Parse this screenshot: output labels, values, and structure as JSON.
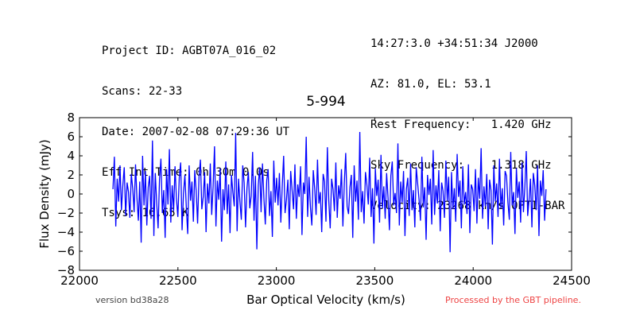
{
  "header": {
    "left_lines": [
      "Project ID: AGBT07A_016_02",
      "Scans: 22-33",
      "Date: 2007-02-08 07:29:36 UT",
      "Eff Int Time: 0h 30m 0.0s",
      "Tsys: 16.65 K"
    ],
    "right_lines": [
      "14:27:3.0 +34:51:34 J2000",
      "AZ: 81.0, EL: 53.1",
      "Rest Frequency:   1.420 GHz",
      "Sky Frequency:    1.318 GHz",
      "Velocity: 23268 km/s OPTI-BAR"
    ]
  },
  "footer": {
    "version": "version bd38a28",
    "processed": "Processed by the GBT pipeline.",
    "processed_color": "#ee4444"
  },
  "chart_data": {
    "type": "line",
    "title": "5-994",
    "xlabel": "Bar Optical Velocity (km/s)",
    "ylabel": "Flux Density (mJy)",
    "xlim": [
      22000,
      24500
    ],
    "ylim": [
      -8,
      8
    ],
    "xticks": [
      22000,
      22500,
      23000,
      23500,
      24000,
      24500
    ],
    "yticks": [
      -8,
      -6,
      -4,
      -2,
      0,
      2,
      4,
      6,
      8
    ],
    "line_color": "#0000ff",
    "grid": false,
    "series": [
      {
        "x_range": [
          22170,
          24370
        ],
        "y": [
          0.5,
          3.9,
          -3.4,
          1.6,
          -0.8,
          3.0,
          -1.7,
          0.9,
          2.8,
          -2.3,
          1.2,
          0.2,
          -2.5,
          2.1,
          0.6,
          -1.9,
          3.1,
          -0.4,
          -2.8,
          1.3,
          -5.1,
          4.0,
          -1.2,
          2.4,
          -3.3,
          0.7,
          1.9,
          -2.6,
          5.6,
          -4.4,
          2.2,
          -0.9,
          -3.6,
          1.5,
          3.7,
          -2.0,
          0.4,
          -4.6,
          2.6,
          -1.1,
          4.7,
          -3.0,
          0.9,
          -1.8,
          2.9,
          -0.5,
          -2.4,
          1.7,
          3.3,
          -3.8,
          0.1,
          2.0,
          -1.4,
          -4.2,
          3.0,
          -0.7,
          1.3,
          -2.9,
          2.5,
          0.3,
          -3.1,
          1.8,
          3.6,
          -1.6,
          -0.3,
          2.3,
          -4.0,
          1.1,
          -1.0,
          3.2,
          -2.2,
          0.8,
          5.0,
          -3.4,
          1.4,
          -0.6,
          2.7,
          -5.0,
          0.5,
          -1.7,
          3.4,
          -2.1,
          1.0,
          -4.1,
          2.0,
          0.2,
          -1.3,
          6.4,
          -3.9,
          1.6,
          -0.8,
          -2.7,
          3.0,
          1.2,
          -3.5,
          0.6,
          2.3,
          -1.5,
          -0.2,
          4.4,
          -2.8,
          1.9,
          -5.8,
          0.9,
          2.8,
          -1.9,
          3.2,
          -0.4,
          -3.2,
          1.4,
          2.6,
          -2.3,
          0.3,
          -4.5,
          3.5,
          -0.9,
          1.7,
          -1.2,
          2.2,
          -3.0,
          0.8,
          4.0,
          -2.0,
          -0.6,
          1.5,
          -3.7,
          2.4,
          0.4,
          -1.6,
          3.1,
          -2.6,
          1.0,
          -0.3,
          2.9,
          -4.3,
          1.2,
          0.0,
          6.0,
          -2.4,
          1.8,
          -1.4,
          -3.3,
          2.5,
          0.6,
          -2.2,
          3.6,
          -1.0,
          0.2,
          -4.0,
          2.1,
          1.3,
          -2.9,
          4.9,
          -0.7,
          -3.6,
          1.6,
          0.5,
          -1.8,
          3.3,
          -2.5,
          0.9,
          -0.5,
          2.6,
          -3.4,
          1.1,
          4.3,
          -1.3,
          -2.1,
          0.7,
          2.0,
          -4.6,
          3.0,
          -0.8,
          1.4,
          -2.7,
          6.5,
          -1.9,
          0.3,
          -3.1,
          2.3,
          1.0,
          -1.1,
          3.8,
          -2.4,
          0.6,
          -5.2,
          2.7,
          -0.2,
          1.5,
          -3.0,
          4.1,
          -1.5,
          0.8,
          -2.6,
          2.2,
          -0.4,
          -3.8,
          1.9,
          3.4,
          -1.2,
          0.1,
          -2.0,
          5.3,
          -3.3,
          1.3,
          -0.9,
          2.4,
          -4.4,
          0.5,
          1.7,
          -2.3,
          3.2,
          -1.7,
          0.4,
          -3.5,
          2.8,
          1.1,
          -0.6,
          -2.8,
          3.9,
          -1.4,
          0.7,
          -4.8,
          2.0,
          -0.1,
          1.6,
          -3.2,
          4.6,
          -2.2,
          0.9,
          -1.0,
          2.5,
          -3.9,
          1.2,
          0.3,
          -2.5,
          3.5,
          -0.7,
          1.8,
          -6.1,
          2.3,
          -1.6,
          0.6,
          -2.9,
          4.2,
          -0.3,
          1.4,
          -3.6,
          2.9,
          -1.1,
          0.2,
          -2.1,
          3.1,
          -4.1,
          1.0,
          0.5,
          -1.8,
          2.6,
          -3.1,
          1.7,
          -0.5,
          4.8,
          -2.6,
          0.8,
          -1.3,
          2.1,
          -3.7,
          1.5,
          0.4,
          -5.3,
          3.0,
          -0.8,
          1.1,
          -2.4,
          3.7,
          -1.5,
          0.6,
          -3.3,
          2.4,
          1.9,
          -0.9,
          -2.7,
          4.4,
          -1.2,
          0.2,
          -4.2,
          2.7,
          -0.4,
          1.3,
          -3.0,
          3.3,
          -1.9,
          0.7,
          4.5,
          -2.3,
          -0.6,
          1.6,
          -3.5,
          2.2,
          0.9,
          -1.7,
          3.0,
          -4.4,
          1.4,
          -0.2,
          2.5,
          -2.8,
          0.5
        ]
      }
    ]
  }
}
